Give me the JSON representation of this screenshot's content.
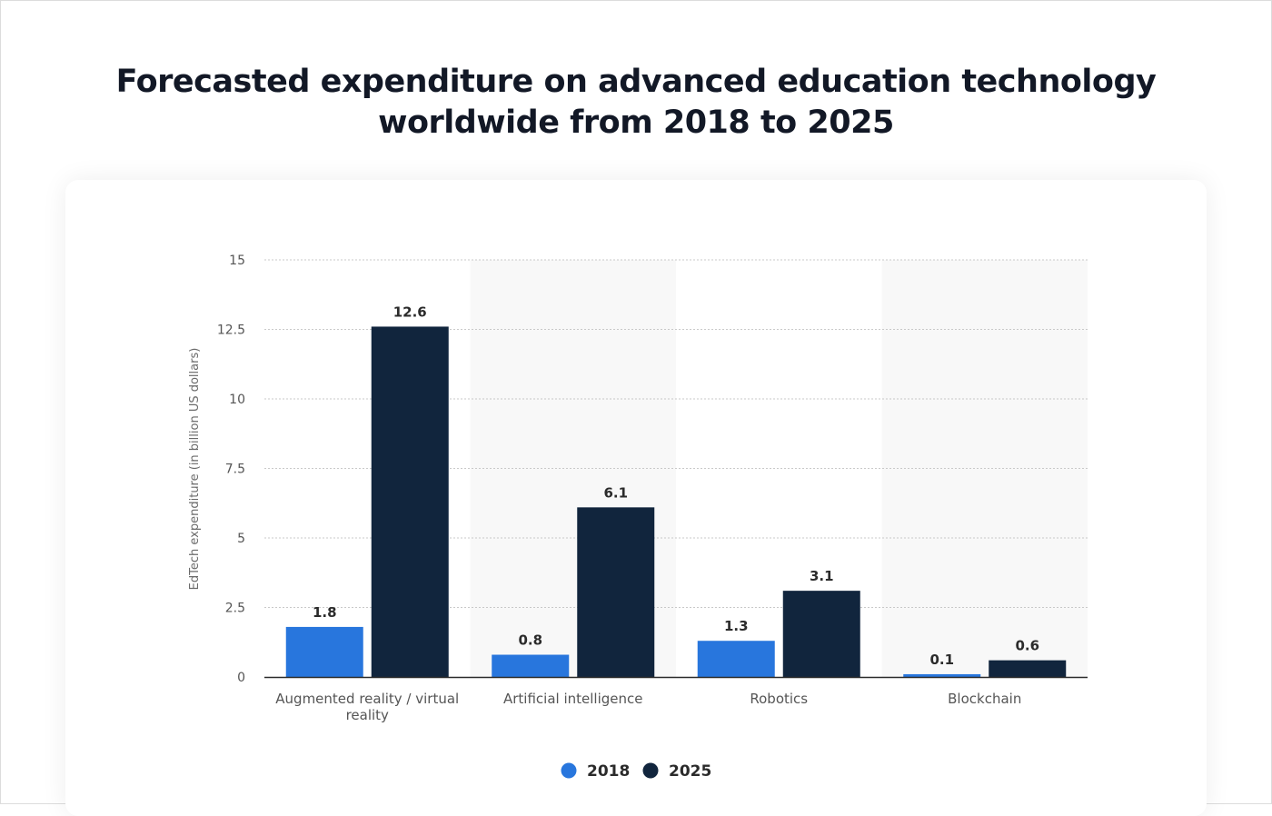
{
  "page": {
    "title_line1": "Forecasted expenditure on advanced education technology",
    "title_line2": "worldwide from 2018 to 2025"
  },
  "chart_data": {
    "type": "bar",
    "ylabel": "EdTech expenditure (in billion US dollars)",
    "xlabel": "",
    "ylim": [
      0,
      15
    ],
    "yticks": [
      0,
      2.5,
      5,
      7.5,
      10,
      12.5,
      15
    ],
    "ytick_labels": [
      "0",
      "2.5",
      "5",
      "7.5",
      "10",
      "12.5",
      "15"
    ],
    "grid": true,
    "legend_position": "bottom-center",
    "categories": [
      [
        "Augmented reality / virtual",
        "reality"
      ],
      [
        "Artificial intelligence"
      ],
      [
        "Robotics"
      ],
      [
        "Blockchain"
      ]
    ],
    "series": [
      {
        "name": "2018",
        "color": "#2876dd",
        "values": [
          1.8,
          0.8,
          1.3,
          0.1
        ],
        "labels": [
          "1.8",
          "0.8",
          "1.3",
          "0.1"
        ]
      },
      {
        "name": "2025",
        "color": "#11253d",
        "values": [
          12.6,
          6.1,
          3.1,
          0.6
        ],
        "labels": [
          "12.6",
          "6.1",
          "3.1",
          "0.6"
        ]
      }
    ]
  }
}
